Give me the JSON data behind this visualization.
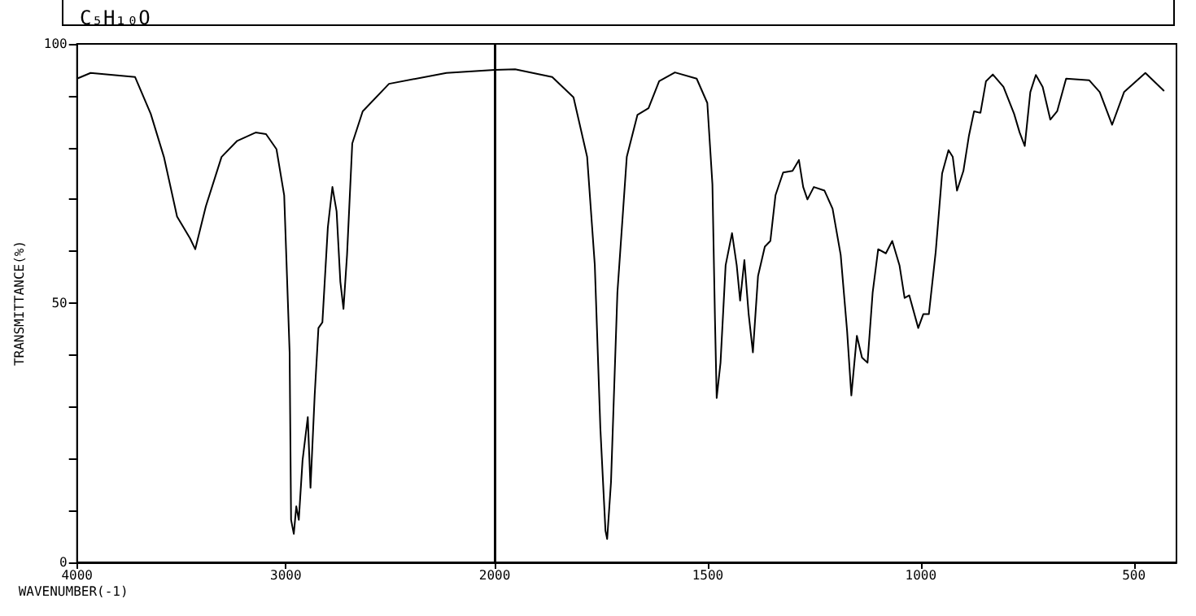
{
  "chart_data": [
    {
      "type": "line",
      "title": "C₅H₁₀O",
      "xlabel": "WAVENUMBER(-1)",
      "ylabel": "TRANSMITTANCE(%)",
      "x": [
        4000,
        3935,
        3722,
        3647,
        3584,
        3521,
        3459,
        3434,
        3383,
        3308,
        3233,
        3145,
        3095,
        3045,
        3008,
        2982,
        2975,
        2962,
        2950,
        2938,
        2920,
        2895,
        2882,
        2862,
        2844,
        2825,
        2799,
        2777,
        2757,
        2739,
        2724,
        2707,
        2682,
        2632,
        2506,
        2231,
        2000
      ],
      "series": [
        {
          "color": "#000000",
          "values": [
            93.3,
            94.4,
            93.6,
            86.5,
            78.2,
            66.7,
            62.5,
            60.4,
            68.7,
            78.2,
            81.3,
            82.9,
            82.6,
            79.7,
            70.8,
            40.5,
            8.2,
            5.5,
            10.8,
            8.2,
            19.7,
            28,
            14.4,
            32.2,
            45.2,
            46.3,
            64.6,
            72.4,
            67.7,
            54.1,
            48.9,
            59.3,
            80.8,
            87,
            92.3,
            94.4,
            95
          ]
        }
      ],
      "xlim": [
        4000,
        2000
      ],
      "xticks": [
        4000,
        3000,
        2000
      ],
      "ylim": [
        0,
        100
      ],
      "yticks": [
        0,
        {
          "value": 10,
          "label": null
        },
        {
          "value": 20,
          "label": null
        },
        {
          "value": 30,
          "label": null
        },
        {
          "value": 40,
          "label": null
        },
        50,
        {
          "value": 60,
          "label": null
        },
        {
          "value": 70,
          "label": null
        },
        {
          "value": 80,
          "label": null
        },
        {
          "value": 90,
          "label": null
        },
        100
      ],
      "grid": false,
      "marker": "none",
      "line_style": "solid"
    },
    {
      "type": "line",
      "x": [
        2000,
        1952,
        1865,
        1815,
        1783,
        1765,
        1752,
        1740,
        1736,
        1727,
        1712,
        1690,
        1665,
        1639,
        1614,
        1577,
        1526,
        1501,
        1489,
        1483,
        1479,
        1470,
        1458,
        1443,
        1432,
        1424,
        1414,
        1404,
        1394,
        1382,
        1366,
        1353,
        1341,
        1323,
        1301,
        1286,
        1276,
        1266,
        1251,
        1226,
        1207,
        1188,
        1173,
        1163,
        1150,
        1138,
        1125,
        1113,
        1100,
        1082,
        1067,
        1050,
        1038,
        1027,
        1006,
        994,
        981,
        965,
        950,
        935,
        925,
        915,
        900,
        887,
        875,
        860,
        847,
        831,
        806,
        781,
        768,
        756,
        743,
        730,
        714,
        696,
        680,
        659,
        605,
        580,
        551,
        523,
        473,
        429
      ],
      "series": [
        {
          "color": "#000000",
          "values": [
            95,
            95.1,
            93.6,
            89.7,
            78.2,
            57.3,
            25.9,
            6.1,
            4.5,
            15.5,
            52,
            78.2,
            86.3,
            87.6,
            92.8,
            94.5,
            93.3,
            88.6,
            72.9,
            46.8,
            31.7,
            38.5,
            57.3,
            63.5,
            57.3,
            50.5,
            58.3,
            47.9,
            40.5,
            55.2,
            60.9,
            62,
            70.8,
            75.2,
            75.5,
            77.6,
            72.4,
            70,
            72.4,
            71.7,
            68.2,
            59.3,
            44.7,
            32.2,
            43.7,
            39.5,
            38.5,
            52,
            60.4,
            59.6,
            62,
            57.3,
            51,
            51.5,
            45.2,
            47.9,
            47.9,
            59.9,
            75,
            79.5,
            78.2,
            71.7,
            75.5,
            82.3,
            87,
            86.7,
            92.8,
            94.1,
            91.7,
            86.5,
            82.9,
            80.3,
            90.7,
            94,
            91.7,
            85.4,
            87,
            93.3,
            93,
            90.7,
            84.4,
            90.7,
            94.4,
            90.9
          ]
        }
      ],
      "xlim": [
        2000,
        400
      ],
      "xticks": [
        1500,
        1000,
        500
      ],
      "ylim": [
        0,
        100
      ],
      "tick_labels": "x",
      "grid": false,
      "marker": "none",
      "line_style": "solid"
    }
  ]
}
